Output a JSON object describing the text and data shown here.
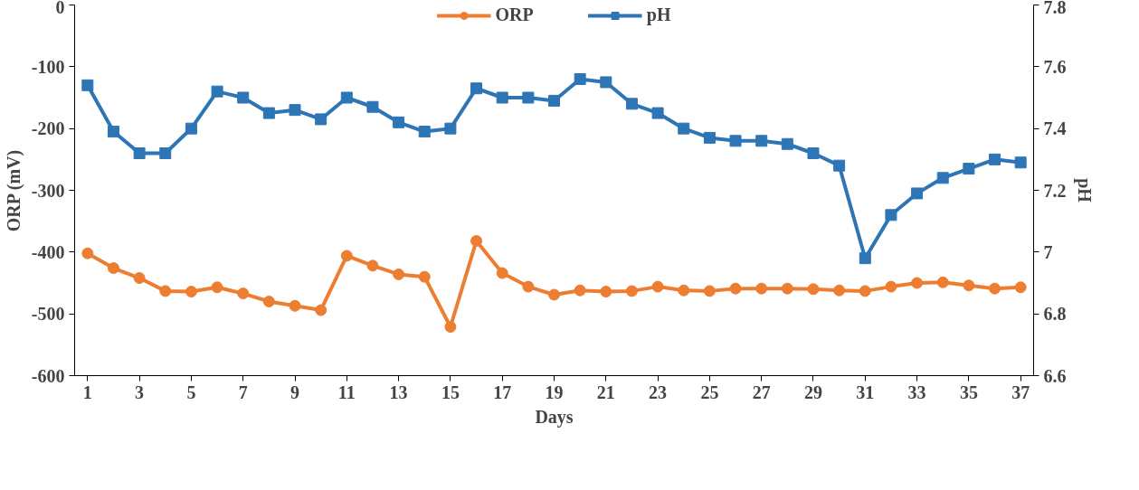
{
  "chart_data": {
    "type": "line",
    "xlabel": "Days",
    "ylabel": "ORP (mV)",
    "y2label": "pH",
    "x": [
      1,
      2,
      3,
      4,
      5,
      6,
      7,
      8,
      9,
      10,
      11,
      12,
      13,
      14,
      15,
      16,
      17,
      18,
      19,
      20,
      21,
      22,
      23,
      24,
      25,
      26,
      27,
      28,
      29,
      30,
      31,
      32,
      33,
      34,
      35,
      36,
      37
    ],
    "xlim": [
      0.5,
      37.5
    ],
    "xticks": [
      1,
      3,
      5,
      7,
      9,
      11,
      13,
      15,
      17,
      19,
      21,
      23,
      25,
      27,
      29,
      31,
      33,
      35,
      37
    ],
    "ylim": [
      -600,
      0
    ],
    "yticks": [
      -600,
      -500,
      -400,
      -300,
      -200,
      -100,
      0
    ],
    "y2lim": [
      6.6,
      7.8
    ],
    "y2ticks": [
      6.6,
      6.8,
      7,
      7.2,
      7.4,
      7.6,
      7.8
    ],
    "grid": false,
    "legend": "top",
    "line_style": "solid",
    "series": [
      {
        "name": "ORP",
        "color": "#ed7d31",
        "marker": "circle",
        "values": [
          -402,
          -426,
          -442,
          -463,
          -464,
          -457,
          -467,
          -480,
          -487,
          -494,
          -406,
          -422,
          -436,
          -440,
          -521,
          -382,
          -434,
          -456,
          -469,
          -462,
          -464,
          -463,
          -456,
          -462,
          -463,
          -459,
          -459,
          -459,
          -460,
          -462,
          -463,
          -456,
          -450,
          -449,
          -454,
          -459,
          -457
        ]
      },
      {
        "name": "pH",
        "color": "#2e75b6",
        "marker": "square",
        "axis": "y2",
        "values": [
          7.54,
          7.39,
          7.32,
          7.32,
          7.4,
          7.52,
          7.5,
          7.45,
          7.46,
          7.43,
          7.5,
          7.47,
          7.42,
          7.39,
          7.4,
          7.53,
          7.5,
          7.5,
          7.49,
          7.56,
          7.55,
          7.48,
          7.45,
          7.4,
          7.37,
          7.36,
          7.36,
          7.35,
          7.32,
          7.28,
          6.98,
          7.12,
          7.19,
          7.24,
          7.27,
          7.3,
          7.29
        ]
      }
    ]
  }
}
